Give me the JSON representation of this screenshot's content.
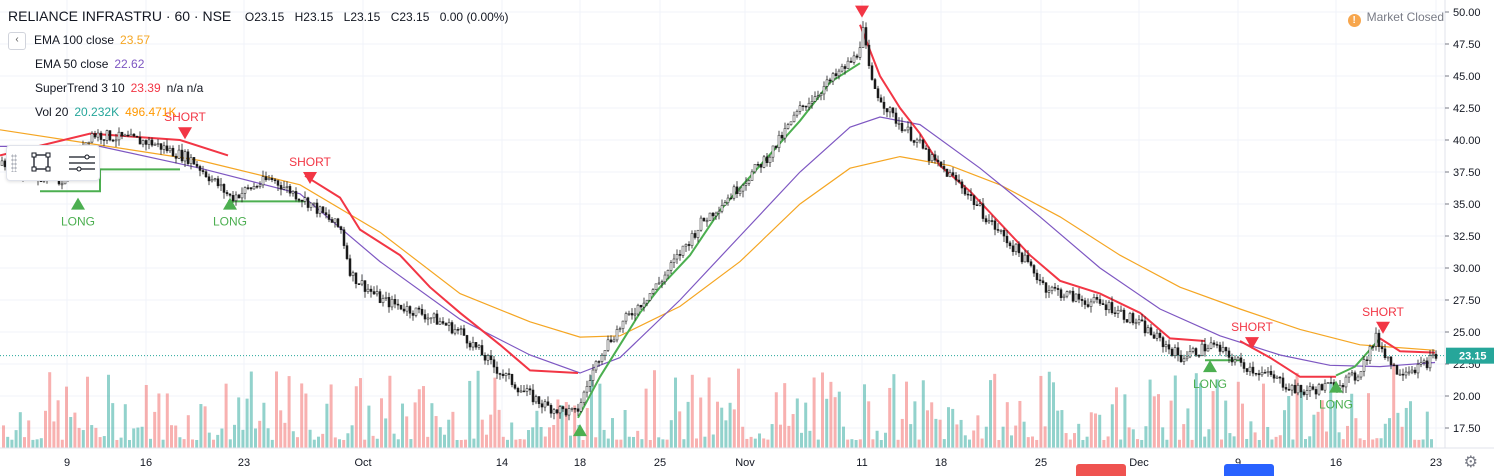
{
  "header": {
    "symbol": "RELIANCE INFRASTRU · 60 · NSE",
    "open": "O23.15",
    "high": "H23.15",
    "low": "L23.15",
    "close": "C23.15",
    "change": "0.00 (0.00%)"
  },
  "indicators": [
    {
      "label": "EMA 100 close",
      "value": "23.57",
      "color": "#f5a623"
    },
    {
      "label": "EMA 50 close",
      "value": "22.62",
      "color": "#7e57c2"
    },
    {
      "label": "SuperTrend 3 10",
      "value": "23.39",
      "extra": "n/a n/a",
      "color": "#f23645"
    },
    {
      "label": "Vol 20",
      "value": "20.232K",
      "value2": "496.471K",
      "color": "#26a69a",
      "color2": "#ff9800"
    }
  ],
  "market_status": "Market Closed",
  "current_price_label": "23.15",
  "chart_data": {
    "type": "candlestick",
    "x_tick_labels": [
      "9",
      "16",
      "23",
      "Oct",
      "14",
      "18",
      "25",
      "Nov",
      "11",
      "18",
      "25",
      "Dec",
      "9",
      "16",
      "23"
    ],
    "y_tick_labels": [
      "17.50",
      "20.00",
      "22.50",
      "25.00",
      "27.50",
      "30.00",
      "32.50",
      "35.00",
      "37.50",
      "40.00",
      "42.50",
      "45.00",
      "47.50",
      "50.00"
    ],
    "ylim": [
      16.5,
      50.5
    ],
    "current_price": 23.15,
    "signals": [
      {
        "type": "SHORT",
        "x_label": "16",
        "price": 41.0,
        "label": "SHORT"
      },
      {
        "type": "LONG",
        "x_label": "9",
        "price": 35.5,
        "label": "LONG"
      },
      {
        "type": "LONG",
        "x_label": "23",
        "price": 35.5,
        "label": "LONG"
      },
      {
        "type": "SHORT",
        "x_label": "23",
        "price": 37.5,
        "label": "SHORT"
      },
      {
        "type": "LONG",
        "x_label": "18",
        "price": 17.8,
        "label": ""
      },
      {
        "type": "SHORT",
        "x_label": "11",
        "price": 50.5,
        "label": ""
      },
      {
        "type": "SHORT",
        "x_label": "9",
        "price": 24.6,
        "label": "SHORT"
      },
      {
        "type": "LONG",
        "x_label": "9",
        "price": 22.8,
        "label": "LONG"
      },
      {
        "type": "LONG",
        "x_label": "16",
        "price": 21.2,
        "label": "LONG"
      },
      {
        "type": "SHORT",
        "x_label": "23",
        "price": 25.8,
        "label": "SHORT"
      }
    ],
    "price_path": [
      [
        0,
        38.0
      ],
      [
        60,
        36.8
      ],
      [
        90,
        40.5
      ],
      [
        150,
        39.8
      ],
      [
        190,
        38.5
      ],
      [
        230,
        35.5
      ],
      [
        270,
        37.0
      ],
      [
        310,
        35.0
      ],
      [
        340,
        33.0
      ],
      [
        350,
        29.5
      ],
      [
        380,
        27.5
      ],
      [
        420,
        26.5
      ],
      [
        460,
        25.0
      ],
      [
        490,
        22.5
      ],
      [
        520,
        20.5
      ],
      [
        545,
        19.2
      ],
      [
        575,
        18.6
      ],
      [
        600,
        23.5
      ],
      [
        625,
        26.0
      ],
      [
        660,
        29.0
      ],
      [
        700,
        33.5
      ],
      [
        740,
        36.5
      ],
      [
        770,
        39.0
      ],
      [
        800,
        42.5
      ],
      [
        835,
        45.0
      ],
      [
        855,
        46.5
      ],
      [
        862,
        48.5
      ],
      [
        870,
        44.5
      ],
      [
        890,
        42.0
      ],
      [
        915,
        40.0
      ],
      [
        930,
        38.5
      ],
      [
        960,
        36.5
      ],
      [
        990,
        33.5
      ],
      [
        1020,
        31.0
      ],
      [
        1045,
        28.5
      ],
      [
        1080,
        27.5
      ],
      [
        1110,
        27.0
      ],
      [
        1140,
        25.5
      ],
      [
        1180,
        23.0
      ],
      [
        1210,
        24.0
      ],
      [
        1240,
        22.5
      ],
      [
        1270,
        21.5
      ],
      [
        1300,
        20.3
      ],
      [
        1330,
        20.8
      ],
      [
        1355,
        21.5
      ],
      [
        1375,
        24.5
      ],
      [
        1395,
        22.0
      ],
      [
        1420,
        22.3
      ],
      [
        1435,
        23.15
      ]
    ],
    "ema100_path": [
      [
        0,
        40.8
      ],
      [
        100,
        39.6
      ],
      [
        200,
        38.4
      ],
      [
        300,
        36.5
      ],
      [
        380,
        32.8
      ],
      [
        460,
        28.0
      ],
      [
        530,
        25.8
      ],
      [
        580,
        24.6
      ],
      [
        620,
        24.7
      ],
      [
        680,
        27.0
      ],
      [
        740,
        30.5
      ],
      [
        800,
        35.0
      ],
      [
        850,
        37.8
      ],
      [
        900,
        38.7
      ],
      [
        950,
        38.0
      ],
      [
        1000,
        36.5
      ],
      [
        1060,
        34.0
      ],
      [
        1120,
        31.0
      ],
      [
        1180,
        28.5
      ],
      [
        1240,
        26.8
      ],
      [
        1300,
        25.2
      ],
      [
        1360,
        24.0
      ],
      [
        1435,
        23.57
      ]
    ],
    "ema50_path": [
      [
        0,
        39.5
      ],
      [
        100,
        39.5
      ],
      [
        200,
        37.8
      ],
      [
        300,
        35.8
      ],
      [
        380,
        30.5
      ],
      [
        460,
        26.0
      ],
      [
        530,
        23.2
      ],
      [
        580,
        21.8
      ],
      [
        620,
        23.0
      ],
      [
        680,
        27.5
      ],
      [
        740,
        32.5
      ],
      [
        800,
        37.5
      ],
      [
        850,
        41.0
      ],
      [
        880,
        41.8
      ],
      [
        920,
        41.2
      ],
      [
        980,
        37.8
      ],
      [
        1040,
        34.0
      ],
      [
        1100,
        30.0
      ],
      [
        1160,
        26.8
      ],
      [
        1220,
        24.7
      ],
      [
        1280,
        23.2
      ],
      [
        1330,
        22.4
      ],
      [
        1380,
        22.3
      ],
      [
        1435,
        22.62
      ]
    ],
    "supertrend_up_segments": [
      [
        [
          40,
          36.0
        ],
        [
          100,
          36.0
        ],
        [
          100,
          37.7
        ],
        [
          180,
          37.7
        ]
      ],
      [
        [
          228,
          35.2
        ],
        [
          305,
          35.2
        ]
      ],
      [
        [
          578,
          18.3
        ],
        [
          600,
          21.5
        ],
        [
          620,
          24.0
        ],
        [
          640,
          26.5
        ],
        [
          660,
          28.5
        ],
        [
          690,
          31.0
        ],
        [
          720,
          34.5
        ],
        [
          760,
          38.0
        ],
        [
          800,
          41.5
        ],
        [
          830,
          44.5
        ],
        [
          860,
          46.0
        ]
      ],
      [
        [
          1205,
          22.8
        ],
        [
          1240,
          22.8
        ]
      ],
      [
        [
          1336,
          21.6
        ],
        [
          1355,
          22.3
        ],
        [
          1380,
          24.5
        ]
      ]
    ],
    "supertrend_down_segments": [
      [
        [
          0,
          38.8
        ],
        [
          90,
          40.5
        ],
        [
          180,
          40.0
        ],
        [
          228,
          38.8
        ]
      ],
      [
        [
          305,
          37.2
        ],
        [
          340,
          35.5
        ],
        [
          360,
          33.0
        ],
        [
          400,
          31.0
        ],
        [
          430,
          28.5
        ],
        [
          460,
          26.5
        ],
        [
          500,
          24.0
        ],
        [
          530,
          22.0
        ],
        [
          578,
          21.8
        ]
      ],
      [
        [
          860,
          49.0
        ],
        [
          880,
          45.0
        ],
        [
          900,
          42.5
        ],
        [
          920,
          40.5
        ],
        [
          940,
          38.0
        ],
        [
          970,
          36.0
        ],
        [
          1000,
          33.5
        ],
        [
          1030,
          31.0
        ],
        [
          1060,
          29.0
        ],
        [
          1100,
          28.0
        ],
        [
          1140,
          26.5
        ],
        [
          1170,
          24.5
        ],
        [
          1205,
          24.3
        ]
      ],
      [
        [
          1240,
          24.3
        ],
        [
          1270,
          23.0
        ],
        [
          1300,
          21.5
        ],
        [
          1336,
          21.5
        ]
      ],
      [
        [
          1380,
          24.5
        ],
        [
          1400,
          23.5
        ],
        [
          1435,
          23.39
        ]
      ]
    ]
  }
}
